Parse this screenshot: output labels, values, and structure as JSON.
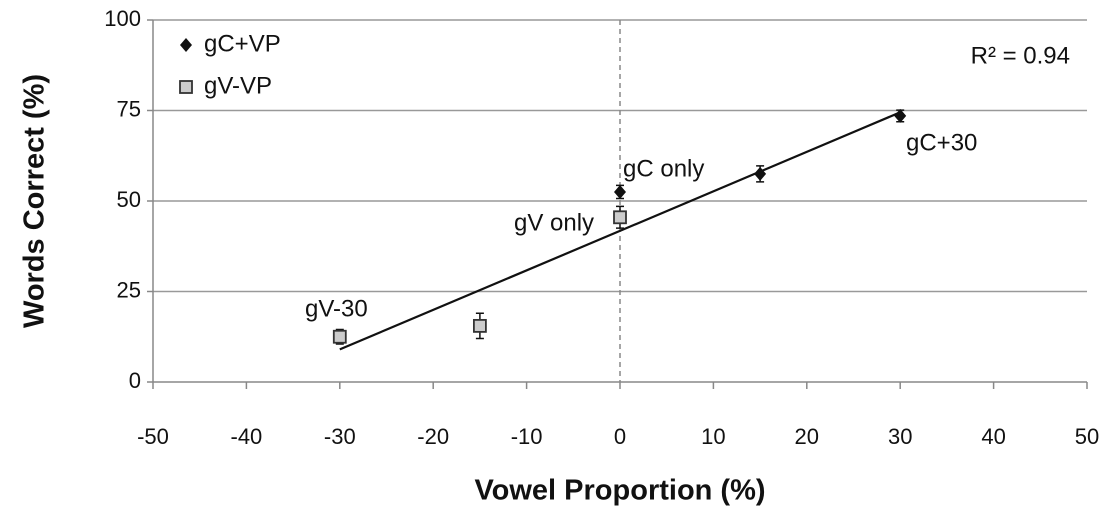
{
  "chart_data": {
    "type": "scatter",
    "xlabel": "Vowel Proportion (%)",
    "ylabel": "Words Correct (%)",
    "xlim": [
      -50,
      50
    ],
    "xticks": [
      -50,
      -40,
      -30,
      -20,
      -10,
      0,
      10,
      20,
      30,
      40,
      50
    ],
    "ylim": [
      0,
      100
    ],
    "yticks": [
      0,
      25,
      50,
      75,
      100
    ],
    "grid": true,
    "legend": "upper left",
    "reference_line_x": 0,
    "series": [
      {
        "name": "gC+VP",
        "color": "#111111",
        "marker": "diamond",
        "x": [
          0,
          15,
          30
        ],
        "values": [
          52.5,
          57.5,
          73.5
        ],
        "errors": [
          1.8,
          2.2,
          1.6
        ]
      },
      {
        "name": "gV-VP",
        "color": "#cccccc",
        "marker": "square",
        "x": [
          -30,
          -15,
          0
        ],
        "values": [
          12.5,
          15.5,
          45.5
        ],
        "errors": [
          2,
          3.5,
          3
        ]
      }
    ],
    "trendline": {
      "x": [
        -30,
        30
      ],
      "values": [
        9,
        74.5
      ]
    },
    "annotations": [
      "R² = 0.94",
      "gC only",
      "gV only",
      "gV-30",
      "gC+30"
    ]
  }
}
